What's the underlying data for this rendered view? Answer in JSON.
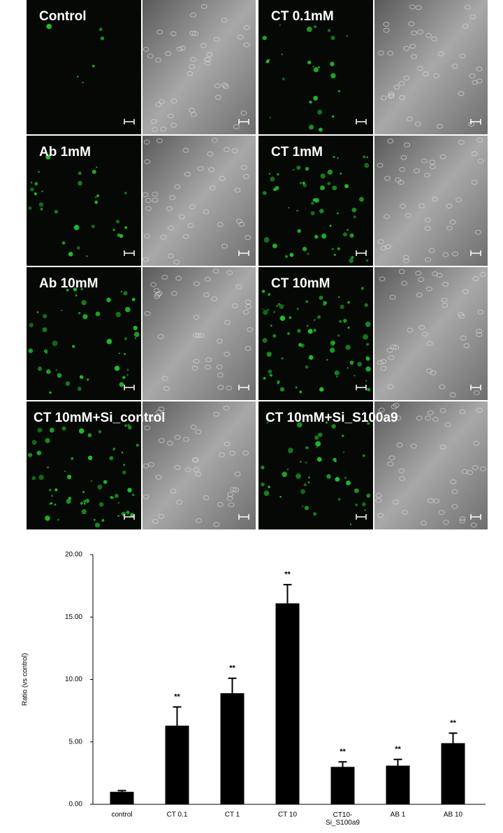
{
  "panels": [
    "Control",
    "CT 0.1mM",
    "Ab 1mM",
    "CT 1mM",
    "Ab 10mM",
    "CT 10mM",
    "CT 10mM+Si_control",
    "CT 10mM+Si_S100a9"
  ],
  "chart_data": {
    "type": "bar",
    "ylabel": "Ratio (vs control)",
    "categories": [
      "control",
      "CT 0.1",
      "CT 1",
      "CT 10",
      "CT10-\nSi_S100a9",
      "AB 1",
      "AB 10"
    ],
    "values": [
      1.0,
      6.3,
      8.9,
      16.1,
      3.0,
      3.1,
      4.9
    ],
    "errors": [
      0.1,
      1.5,
      1.2,
      1.5,
      0.4,
      0.5,
      0.8
    ],
    "significance": [
      null,
      "**",
      "**",
      "**",
      "**",
      "**",
      "**"
    ],
    "color": "#000000",
    "ylim": [
      0,
      20
    ],
    "yticks": [
      {
        "value": 0,
        "label": "0.00"
      },
      {
        "value": 5,
        "label": "5.00"
      },
      {
        "value": 10,
        "label": "10.00"
      },
      {
        "value": 15,
        "label": "15.00"
      },
      {
        "value": 20,
        "label": "20.00"
      }
    ]
  }
}
